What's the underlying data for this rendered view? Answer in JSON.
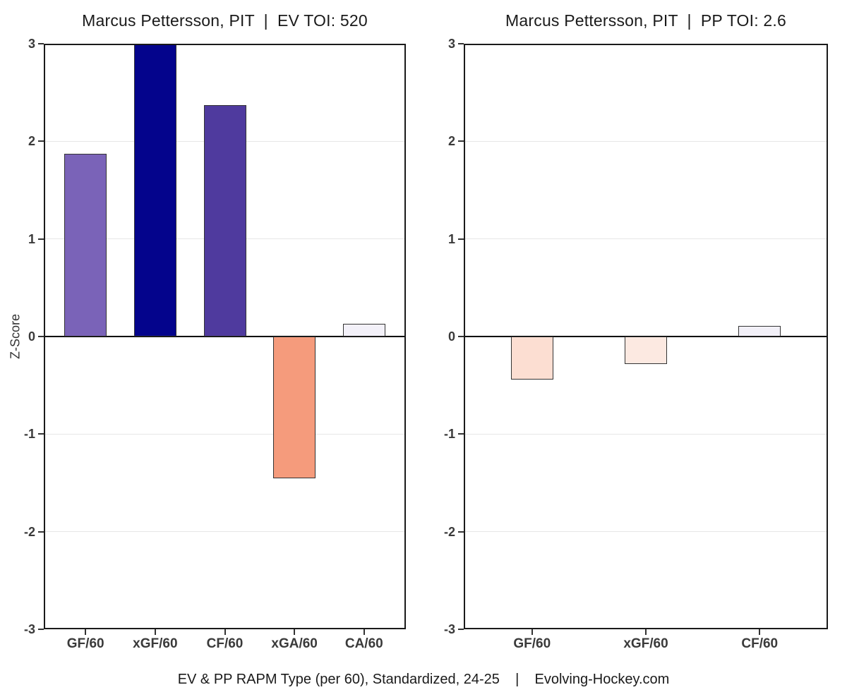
{
  "caption": "EV & PP RAPM Type (per 60), Standardized, 24-25    |    Evolving-Hockey.com",
  "chart_data": [
    {
      "type": "bar",
      "title": "Marcus Pettersson, PIT  |  EV TOI: 520",
      "ylabel": "Z-Score",
      "xlabel": "",
      "ylim": [
        -3,
        3
      ],
      "y_ticks": [
        3,
        2,
        1,
        0,
        -1,
        -2,
        -3
      ],
      "grid": true,
      "legend": "none",
      "categories": [
        "GF/60",
        "xGF/60",
        "CF/60",
        "xGA/60",
        "CA/60"
      ],
      "values": [
        1.87,
        3.0,
        2.37,
        -1.45,
        0.13
      ],
      "bar_colors": [
        "#7a63b8",
        "#04048c",
        "#4f3a9e",
        "#f59b7c",
        "#f3f1f9"
      ]
    },
    {
      "type": "bar",
      "title": "Marcus Pettersson, PIT  |  PP TOI: 2.6",
      "ylabel": "",
      "xlabel": "",
      "ylim": [
        -3,
        3
      ],
      "y_ticks": [
        3,
        2,
        1,
        0,
        -1,
        -2,
        -3
      ],
      "grid": true,
      "legend": "none",
      "categories": [
        "GF/60",
        "xGF/60",
        "CF/60"
      ],
      "values": [
        -0.44,
        -0.28,
        0.11
      ],
      "bar_colors": [
        "#fcded2",
        "#fce9e1",
        "#f2f0f8"
      ]
    }
  ]
}
